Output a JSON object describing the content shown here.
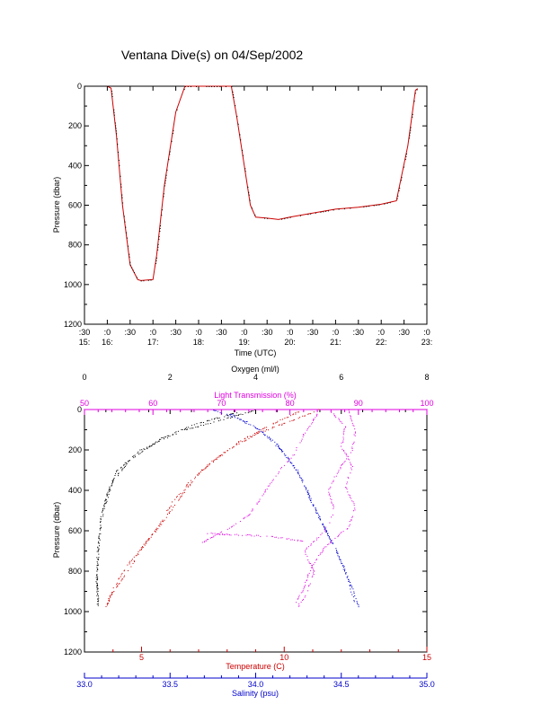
{
  "title": "Ventana Dive(s) on 04/Sep/2002",
  "colors": {
    "black": "#000000",
    "red": "#cc0000",
    "magenta": "#e000e0",
    "blue": "#0000cc"
  },
  "chart_data": [
    {
      "type": "line",
      "xlabel": "Time (UTC)",
      "ylabel": "Pressure (dbar)",
      "ylim": [
        0,
        1200
      ],
      "y_reversed": true,
      "yticks": [
        "0",
        "200",
        "400",
        "600",
        "800",
        "1000",
        "1200"
      ],
      "xticks": [
        {
          "top": ":30",
          "bottom": "15:"
        },
        {
          "top": ":0",
          "bottom": "16:"
        },
        {
          "top": ":30",
          "bottom": ""
        },
        {
          "top": ":0",
          "bottom": "17:"
        },
        {
          "top": ":30",
          "bottom": ""
        },
        {
          "top": ":0",
          "bottom": "18:"
        },
        {
          "top": ":30",
          "bottom": ""
        },
        {
          "top": ":0",
          "bottom": "19:"
        },
        {
          "top": ":30",
          "bottom": ""
        },
        {
          "top": ":0",
          "bottom": "20:"
        },
        {
          "top": ":30",
          "bottom": ""
        },
        {
          "top": ":0",
          "bottom": "21:"
        },
        {
          "top": ":30",
          "bottom": ""
        },
        {
          "top": ":0",
          "bottom": "22:"
        },
        {
          "top": ":30",
          "bottom": ""
        },
        {
          "top": ":0",
          "bottom": "23:"
        }
      ],
      "series": [
        {
          "x": [
            "16:00",
            "16:05",
            "16:12",
            "16:20",
            "16:30",
            "16:40",
            "16:44",
            "17:00",
            "17:05",
            "17:15",
            "17:30",
            "17:42",
            "18:00",
            "18:20",
            "18:43",
            "18:50",
            "19:00",
            "19:08",
            "19:15",
            "19:30",
            "19:45",
            "20:00",
            "20:30",
            "21:00",
            "21:30",
            "22:00",
            "22:15",
            "22:20",
            "22:35",
            "22:45",
            "22:48"
          ],
          "y": [
            0,
            10,
            250,
            600,
            900,
            975,
            980,
            975,
            850,
            500,
            130,
            0,
            0,
            0,
            0,
            150,
            400,
            600,
            660,
            665,
            672,
            660,
            640,
            620,
            610,
            595,
            582,
            578,
            300,
            20,
            12
          ]
        }
      ]
    },
    {
      "type": "scatter",
      "ylabel": "Pressure (dbar)",
      "ylim": [
        0,
        1200
      ],
      "y_reversed": true,
      "yticks": [
        "0",
        "200",
        "400",
        "600",
        "800",
        "1000",
        "1200"
      ],
      "axes": {
        "oxygen": {
          "label": "Oxygen (ml/l)",
          "range": [
            0,
            8
          ],
          "ticks": [
            "0",
            "2",
            "4",
            "6",
            "8"
          ]
        },
        "light": {
          "label": "Light Transmission (%)",
          "range": [
            50,
            100
          ],
          "ticks": [
            "50",
            "60",
            "70",
            "80",
            "90",
            "100"
          ]
        },
        "temperature": {
          "label": "Temperature (C)",
          "range": [
            3.0,
            15.0
          ],
          "ticks": [
            "5",
            "10",
            "15"
          ]
        },
        "salinity": {
          "label": "Salinity (psu)",
          "range": [
            33.0,
            35.0
          ],
          "ticks": [
            "33.0",
            "33.5",
            "34.0",
            "34.5",
            "35.0"
          ]
        }
      },
      "series": [
        {
          "variable": "oxygen",
          "color": "black",
          "x": [
            4.0,
            3.2,
            2.3,
            1.3,
            0.75,
            0.55,
            0.4,
            0.35,
            0.3,
            0.28,
            0.32
          ],
          "y": [
            0,
            50,
            100,
            200,
            300,
            400,
            500,
            600,
            700,
            850,
            980
          ]
        },
        {
          "variable": "oxygen",
          "color": "black",
          "x": [
            3.6,
            2.6,
            1.8,
            1.05,
            0.65,
            0.5,
            0.38,
            0.32,
            0.28,
            0.3
          ],
          "y": [
            10,
            70,
            140,
            250,
            350,
            450,
            550,
            680,
            820,
            970
          ]
        },
        {
          "variable": "temperature",
          "color": "red",
          "x": [
            11.2,
            10.3,
            9.0,
            8.0,
            7.1,
            6.5,
            6.0,
            5.5,
            5.1,
            4.5,
            3.9,
            3.7
          ],
          "y": [
            0,
            50,
            120,
            200,
            300,
            400,
            500,
            600,
            660,
            800,
            920,
            980
          ]
        },
        {
          "variable": "temperature",
          "color": "red",
          "x": [
            10.5,
            9.4,
            8.5,
            7.5,
            6.7,
            6.1,
            5.7,
            5.2,
            4.6,
            4.0,
            3.75
          ],
          "y": [
            10,
            80,
            150,
            250,
            350,
            450,
            550,
            650,
            750,
            880,
            975
          ]
        },
        {
          "variable": "salinity",
          "color": "blue",
          "x": [
            33.75,
            33.95,
            34.1,
            34.2,
            34.27,
            34.32,
            34.38,
            34.44,
            34.5,
            34.56,
            34.6
          ],
          "y": [
            0,
            60,
            150,
            250,
            350,
            450,
            550,
            650,
            750,
            880,
            980
          ]
        },
        {
          "variable": "salinity",
          "color": "blue",
          "x": [
            33.85,
            34.02,
            34.15,
            34.24,
            34.3,
            34.35,
            34.41,
            34.47,
            34.53,
            34.58
          ],
          "y": [
            20,
            100,
            200,
            300,
            400,
            500,
            600,
            700,
            820,
            960
          ]
        },
        {
          "variable": "light",
          "color": "magenta",
          "x": [
            88.5,
            89.5,
            89.0,
            87.0,
            85.5,
            86.5,
            85.0,
            82.0,
            83.5,
            82.5,
            81.0
          ],
          "y": [
            0,
            100,
            200,
            300,
            400,
            500,
            600,
            700,
            800,
            900,
            980
          ]
        },
        {
          "variable": "light",
          "color": "magenta",
          "x": [
            86.0,
            88.0,
            87.5,
            89.0,
            88.0,
            89.5,
            88.5,
            85.0,
            83.0,
            82.0,
            80.5
          ],
          "y": [
            10,
            80,
            180,
            280,
            380,
            480,
            580,
            680,
            780,
            880,
            975
          ]
        },
        {
          "variable": "light",
          "color": "magenta",
          "x": [
            84.0,
            82.0,
            80.5,
            78.0,
            76.0,
            74.0,
            71.0,
            69.0,
            67.0
          ],
          "y": [
            20,
            120,
            220,
            320,
            420,
            520,
            590,
            620,
            660
          ]
        },
        {
          "variable": "light",
          "color": "magenta",
          "x": [
            68.0,
            70.0,
            72.0,
            74.0,
            76.0,
            78.0,
            80.0,
            82.0
          ],
          "y": [
            610,
            615,
            618,
            620,
            625,
            630,
            640,
            650
          ]
        }
      ]
    }
  ]
}
